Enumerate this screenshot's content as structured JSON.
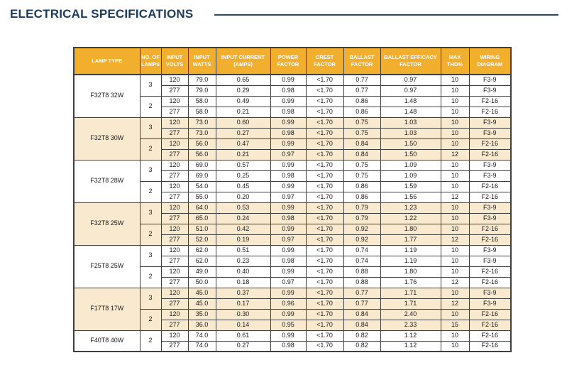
{
  "page": {
    "title": "ELECTRICAL SPECIFICATIONS"
  },
  "colors": {
    "title_navy": "#1B3A5C",
    "header_gold": "#F1AF2D",
    "header_text": "#FFFFFF",
    "row_shaded": "#F8E9CF",
    "row_plain": "#FFFFFF",
    "border": "#3F3F3F"
  },
  "table": {
    "columns": [
      "LAMP TYPE",
      "NO. OF LAMPS",
      "INPUT VOLTS",
      "INPUT WATTS",
      "INPUT CURRENT (AMPS)",
      "POWER FACTOR",
      "CREST FACTOR",
      "BALLAST FACTOR",
      "BALLAST EFFICACY FACTOR",
      "MAX THD%",
      "WIRING DIAGRAM"
    ],
    "column_keys": [
      "input-volts",
      "input-watts",
      "input-current",
      "power-factor",
      "crest-factor",
      "ballast-factor",
      "ballast-efficacy-factor",
      "max-thd",
      "wiring-diagram"
    ],
    "groups": [
      {
        "lamp_type": "F32T8 32W",
        "shaded": false,
        "blocks": [
          {
            "lamps": "3",
            "rows": [
              [
                "120",
                "79.0",
                "0.65",
                "0.99",
                "<1.70",
                "0.77",
                "0.97",
                "10",
                "F3-9"
              ],
              [
                "277",
                "79.0",
                "0.29",
                "0.98",
                "<1.70",
                "0.77",
                "0.97",
                "10",
                "F3-9"
              ]
            ]
          },
          {
            "lamps": "2",
            "rows": [
              [
                "120",
                "58.0",
                "0.49",
                "0.99",
                "<1.70",
                "0.86",
                "1.48",
                "10",
                "F2-16"
              ],
              [
                "277",
                "58.0",
                "0.21",
                "0.98",
                "<1.70",
                "0.86",
                "1.48",
                "10",
                "F2-16"
              ]
            ]
          }
        ]
      },
      {
        "lamp_type": "F32T8 30W",
        "shaded": true,
        "blocks": [
          {
            "lamps": "3",
            "rows": [
              [
                "120",
                "73.0",
                "0.60",
                "0.99",
                "<1.70",
                "0.75",
                "1.03",
                "10",
                "F3-9"
              ],
              [
                "277",
                "73.0",
                "0.27",
                "0.98",
                "<1.70",
                "0.75",
                "1.03",
                "10",
                "F3-9"
              ]
            ]
          },
          {
            "lamps": "2",
            "rows": [
              [
                "120",
                "56.0",
                "0.47",
                "0.99",
                "<1.70",
                "0.84",
                "1.50",
                "10",
                "F2-16"
              ],
              [
                "277",
                "56.0",
                "0.21",
                "0.97",
                "<1.70",
                "0.84",
                "1.50",
                "12",
                "F2-16"
              ]
            ]
          }
        ]
      },
      {
        "lamp_type": "F32T8 28W",
        "shaded": false,
        "blocks": [
          {
            "lamps": "3",
            "rows": [
              [
                "120",
                "69.0",
                "0.57",
                "0.99",
                "<1.70",
                "0.75",
                "1.09",
                "10",
                "F3-9"
              ],
              [
                "277",
                "69.0",
                "0.25",
                "0.98",
                "<1.70",
                "0.75",
                "1.09",
                "10",
                "F3-9"
              ]
            ]
          },
          {
            "lamps": "2",
            "rows": [
              [
                "120",
                "54.0",
                "0.45",
                "0.99",
                "<1.70",
                "0.86",
                "1.59",
                "10",
                "F2-16"
              ],
              [
                "277",
                "55.0",
                "0.20",
                "0.97",
                "<1.70",
                "0.86",
                "1.56",
                "12",
                "F2-16"
              ]
            ]
          }
        ]
      },
      {
        "lamp_type": "F32T8 25W",
        "shaded": true,
        "blocks": [
          {
            "lamps": "3",
            "rows": [
              [
                "120",
                "64.0",
                "0.53",
                "0.99",
                "<1.70",
                "0.79",
                "1.23",
                "10",
                "F3-9"
              ],
              [
                "277",
                "65.0",
                "0.24",
                "0.98",
                "<1.70",
                "0.79",
                "1.22",
                "10",
                "F3-9"
              ]
            ]
          },
          {
            "lamps": "2",
            "rows": [
              [
                "120",
                "51.0",
                "0.42",
                "0.99",
                "<1.70",
                "0.92",
                "1.80",
                "10",
                "F2-16"
              ],
              [
                "277",
                "52.0",
                "0.19",
                "0.97",
                "<1.70",
                "0.92",
                "1.77",
                "12",
                "F2-16"
              ]
            ]
          }
        ]
      },
      {
        "lamp_type": "F25T8 25W",
        "shaded": false,
        "blocks": [
          {
            "lamps": "3",
            "rows": [
              [
                "120",
                "62.0",
                "0.51",
                "0.99",
                "<1.70",
                "0.74",
                "1.19",
                "10",
                "F3-9"
              ],
              [
                "277",
                "62.0",
                "0.23",
                "0.98",
                "<1.70",
                "0.74",
                "1.19",
                "10",
                "F3-9"
              ]
            ]
          },
          {
            "lamps": "2",
            "rows": [
              [
                "120",
                "49.0",
                "0.40",
                "0.99",
                "<1.70",
                "0.88",
                "1.80",
                "10",
                "F2-16"
              ],
              [
                "277",
                "50.0",
                "0.18",
                "0.97",
                "<1.70",
                "0.88",
                "1.76",
                "12",
                "F2-16"
              ]
            ]
          }
        ]
      },
      {
        "lamp_type": "F17T8 17W",
        "shaded": true,
        "blocks": [
          {
            "lamps": "3",
            "rows": [
              [
                "120",
                "45.0",
                "0.37",
                "0.99",
                "<1.70",
                "0.77",
                "1.71",
                "10",
                "F3-9"
              ],
              [
                "277",
                "45.0",
                "0.17",
                "0.96",
                "<1.70",
                "0.77",
                "1.71",
                "12",
                "F3-9"
              ]
            ]
          },
          {
            "lamps": "2",
            "rows": [
              [
                "120",
                "35.0",
                "0.30",
                "0.99",
                "<1.70",
                "0.84",
                "2.40",
                "10",
                "F2-16"
              ],
              [
                "277",
                "36.0",
                "0.14",
                "0.95",
                "<1.70",
                "0.84",
                "2.33",
                "15",
                "F2-16"
              ]
            ]
          }
        ]
      },
      {
        "lamp_type": "F40T8  40W",
        "shaded": false,
        "blocks": [
          {
            "lamps": "2",
            "rows": [
              [
                "120",
                "74.0",
                "0.61",
                "0.99",
                "<1.70",
                "0.82",
                "1.12",
                "10",
                "F2-16"
              ],
              [
                "277",
                "74.0",
                "0.27",
                "0.98",
                "<1.70",
                "0.82",
                "1.12",
                "10",
                "F2-16"
              ]
            ]
          }
        ]
      }
    ]
  }
}
